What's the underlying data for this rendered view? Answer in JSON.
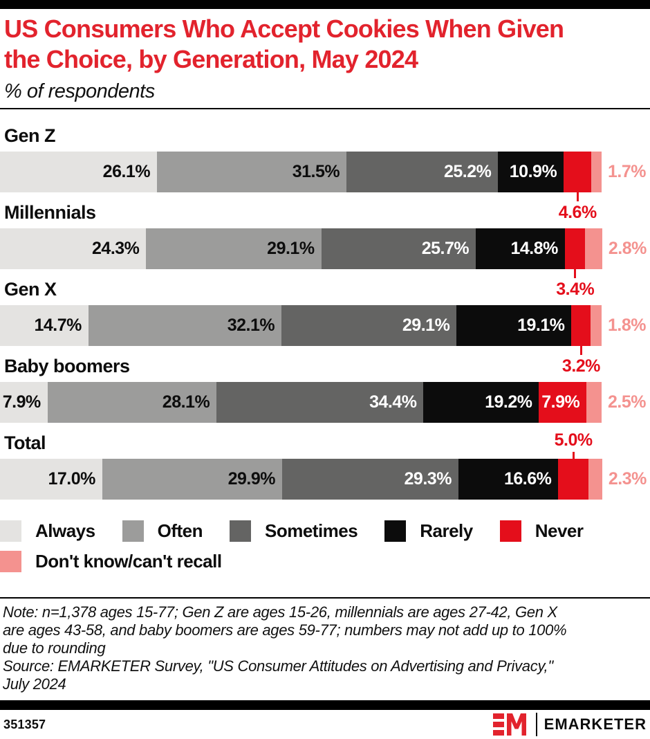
{
  "header": {
    "title_lines": [
      "US Consumers Who Accept Cookies When Given",
      "the Choice, by Generation, May 2024"
    ],
    "subtitle": "% of respondents"
  },
  "chart_data": {
    "type": "bar",
    "orientation": "horizontal-stacked",
    "title": "US Consumers Who Accept Cookies When Given the Choice, by Generation, May 2024",
    "subtitle": "% of respondents",
    "value_suffix": "%",
    "xlim": [
      0,
      100
    ],
    "categories": [
      "Gen Z",
      "Millennials",
      "Gen X",
      "Baby boomers",
      "Total"
    ],
    "series": [
      {
        "name": "Always",
        "color": "#e4e3e1",
        "text_color": "#0d0d0d",
        "values": [
          26.1,
          24.3,
          14.7,
          7.9,
          17.0
        ]
      },
      {
        "name": "Often",
        "color": "#9c9c9b",
        "text_color": "#0d0d0d",
        "values": [
          31.5,
          29.1,
          32.1,
          28.1,
          29.9
        ]
      },
      {
        "name": "Sometimes",
        "color": "#646463",
        "text_color": "#ffffff",
        "values": [
          25.2,
          25.7,
          29.1,
          34.4,
          29.3
        ]
      },
      {
        "name": "Rarely",
        "color": "#0c0c0c",
        "text_color": "#ffffff",
        "values": [
          10.9,
          14.8,
          19.1,
          19.2,
          16.6
        ]
      },
      {
        "name": "Never",
        "color": "#e40e1b",
        "text_color": "#ffffff",
        "values": [
          4.6,
          3.4,
          3.2,
          7.9,
          5.0
        ]
      },
      {
        "name": "Don't know/can't recall",
        "color": "#f4928f",
        "text_color": "#f4928f",
        "values": [
          1.7,
          2.8,
          1.8,
          2.5,
          2.3
        ]
      }
    ],
    "never_label_positions": [
      "below",
      "below",
      "below",
      "inside",
      "above"
    ],
    "legend_position": "bottom",
    "legend_rows": [
      [
        "Always",
        "Often",
        "Sometimes",
        "Rarely",
        "Never"
      ],
      [
        "Don't know/can't recall"
      ]
    ]
  },
  "notes": {
    "note_lines": [
      "Note: n=1,378 ages 15-77; Gen Z are ages 15-26, millennials are ages 27-42, Gen X",
      "are ages 43-58, and baby boomers are ages 59-77; numbers may not add up to 100%",
      "due to rounding",
      "Source: EMARKETER Survey, \"US Consumer Attitudes on Advertising and Privacy,\"",
      "July 2024"
    ]
  },
  "footer": {
    "chart_id": "351357",
    "logo_wordmark": "EMARKETER"
  },
  "colors": {
    "accent_red": "#e2232d",
    "never_red": "#e40e1b",
    "pink": "#f4928f",
    "black": "#0d0d0d"
  }
}
